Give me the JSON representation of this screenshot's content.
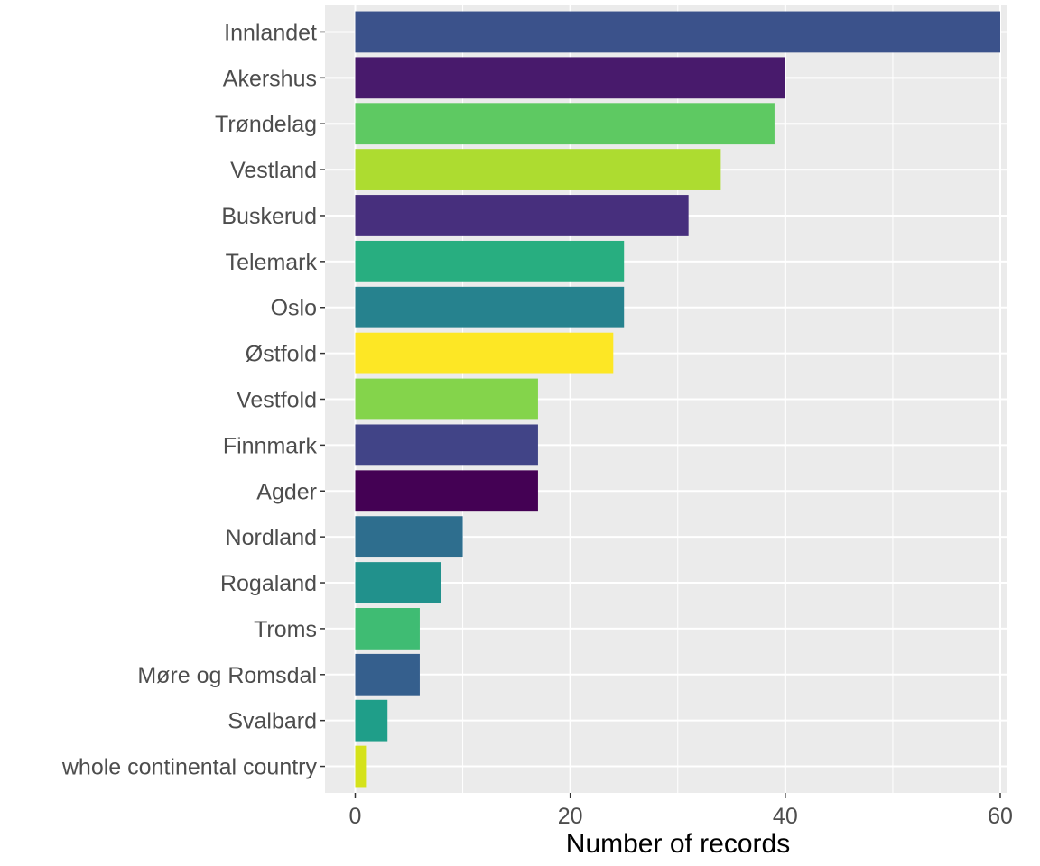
{
  "chart_data": {
    "type": "bar",
    "orientation": "horizontal",
    "title": "",
    "xlabel": "Number of records",
    "ylabel": "",
    "xlim": [
      0,
      63
    ],
    "xticks": [
      0,
      20,
      40,
      60
    ],
    "grid": true,
    "legend": "none",
    "categories": [
      "Innlandet",
      "Akershus",
      "Trøndelag",
      "Vestland",
      "Buskerud",
      "Telemark",
      "Oslo",
      "Østfold",
      "Vestfold",
      "Finnmark",
      "Agder",
      "Nordland",
      "Rogaland",
      "Troms",
      "Møre og Romsdal",
      "Svalbard",
      "whole continental country"
    ],
    "values": [
      60,
      40,
      39,
      34,
      31,
      25,
      25,
      24,
      17,
      17,
      17,
      10,
      8,
      6,
      6,
      3,
      1
    ],
    "colors": [
      "#3b528b",
      "#481a6c",
      "#5ec962",
      "#addc30",
      "#472f7d",
      "#28ae80",
      "#26828e",
      "#fde725",
      "#84d44b",
      "#414487",
      "#440154",
      "#2e6e8e",
      "#21918c",
      "#3fbc73",
      "#355f8d",
      "#1f9e89",
      "#d5e21a"
    ]
  }
}
